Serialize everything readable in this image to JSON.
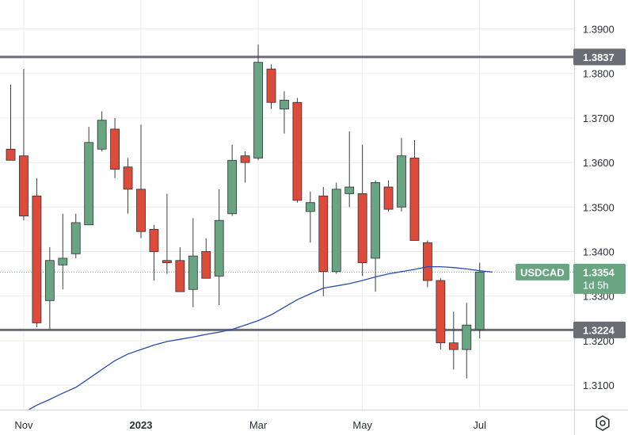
{
  "chart_data": {
    "type": "candlestick",
    "symbol": "USDCAD",
    "timeframe": "weekly",
    "ylim": [
      1.3045,
      1.3965
    ],
    "yticks": [
      "1.3100",
      "1.3200",
      "1.3300",
      "1.3400",
      "1.3500",
      "1.3600",
      "1.3700",
      "1.3800",
      "1.3900"
    ],
    "xticks": [
      {
        "label": "Nov",
        "index": 1,
        "year": false
      },
      {
        "label": "2023",
        "index": 10,
        "year": true
      },
      {
        "label": "Mar",
        "index": 19,
        "year": false
      },
      {
        "label": "May",
        "index": 27,
        "year": false
      },
      {
        "label": "Jul",
        "index": 36,
        "year": false
      }
    ],
    "candles": [
      {
        "o": 1.363,
        "h": 1.3775,
        "l": 1.3605,
        "c": 1.3605
      },
      {
        "o": 1.3615,
        "h": 1.381,
        "l": 1.347,
        "c": 1.348
      },
      {
        "o": 1.3525,
        "h": 1.3565,
        "l": 1.323,
        "c": 1.324
      },
      {
        "o": 1.329,
        "h": 1.341,
        "l": 1.3225,
        "c": 1.338
      },
      {
        "o": 1.337,
        "h": 1.3485,
        "l": 1.3315,
        "c": 1.3385
      },
      {
        "o": 1.3395,
        "h": 1.3485,
        "l": 1.3385,
        "c": 1.3465
      },
      {
        "o": 1.346,
        "h": 1.368,
        "l": 1.346,
        "c": 1.3645
      },
      {
        "o": 1.363,
        "h": 1.3715,
        "l": 1.3625,
        "c": 1.3695
      },
      {
        "o": 1.3675,
        "h": 1.37,
        "l": 1.3565,
        "c": 1.3585
      },
      {
        "o": 1.359,
        "h": 1.361,
        "l": 1.3485,
        "c": 1.354
      },
      {
        "o": 1.354,
        "h": 1.3685,
        "l": 1.343,
        "c": 1.3445
      },
      {
        "o": 1.345,
        "h": 1.346,
        "l": 1.3335,
        "c": 1.34
      },
      {
        "o": 1.338,
        "h": 1.353,
        "l": 1.335,
        "c": 1.3375
      },
      {
        "o": 1.338,
        "h": 1.341,
        "l": 1.331,
        "c": 1.331
      },
      {
        "o": 1.3315,
        "h": 1.3475,
        "l": 1.3275,
        "c": 1.339
      },
      {
        "o": 1.34,
        "h": 1.343,
        "l": 1.334,
        "c": 1.334
      },
      {
        "o": 1.3345,
        "h": 1.354,
        "l": 1.328,
        "c": 1.347
      },
      {
        "o": 1.3485,
        "h": 1.364,
        "l": 1.348,
        "c": 1.3605
      },
      {
        "o": 1.3615,
        "h": 1.3625,
        "l": 1.3555,
        "c": 1.36
      },
      {
        "o": 1.361,
        "h": 1.3865,
        "l": 1.3605,
        "c": 1.3825
      },
      {
        "o": 1.381,
        "h": 1.382,
        "l": 1.372,
        "c": 1.3735
      },
      {
        "o": 1.372,
        "h": 1.376,
        "l": 1.3665,
        "c": 1.374
      },
      {
        "o": 1.3735,
        "h": 1.3745,
        "l": 1.351,
        "c": 1.3515
      },
      {
        "o": 1.349,
        "h": 1.3535,
        "l": 1.342,
        "c": 1.351
      },
      {
        "o": 1.3525,
        "h": 1.3545,
        "l": 1.33,
        "c": 1.3355
      },
      {
        "o": 1.3355,
        "h": 1.3555,
        "l": 1.335,
        "c": 1.354
      },
      {
        "o": 1.353,
        "h": 1.367,
        "l": 1.35,
        "c": 1.3545
      },
      {
        "o": 1.353,
        "h": 1.364,
        "l": 1.3345,
        "c": 1.3375
      },
      {
        "o": 1.3385,
        "h": 1.356,
        "l": 1.331,
        "c": 1.3555
      },
      {
        "o": 1.3545,
        "h": 1.356,
        "l": 1.349,
        "c": 1.3495
      },
      {
        "o": 1.35,
        "h": 1.3655,
        "l": 1.349,
        "c": 1.3615
      },
      {
        "o": 1.361,
        "h": 1.365,
        "l": 1.3425,
        "c": 1.3425
      },
      {
        "o": 1.342,
        "h": 1.3425,
        "l": 1.332,
        "c": 1.3335
      },
      {
        "o": 1.3335,
        "h": 1.334,
        "l": 1.318,
        "c": 1.3195
      },
      {
        "o": 1.3195,
        "h": 1.3265,
        "l": 1.3135,
        "c": 1.318
      },
      {
        "o": 1.318,
        "h": 1.3285,
        "l": 1.3115,
        "c": 1.3235
      },
      {
        "o": 1.3225,
        "h": 1.3375,
        "l": 1.3205,
        "c": 1.3354
      }
    ],
    "moving_average": {
      "name": "MA",
      "start_index": 2,
      "values": [
        1.3055,
        1.3068,
        1.3082,
        1.3095,
        1.3115,
        1.3135,
        1.3155,
        1.317,
        1.318,
        1.319,
        1.3198,
        1.3203,
        1.3208,
        1.3214,
        1.3219,
        1.3225,
        1.3235,
        1.3245,
        1.3258,
        1.3275,
        1.3292,
        1.3305,
        1.3318,
        1.3323,
        1.3328,
        1.3335,
        1.3343,
        1.335,
        1.3355,
        1.336,
        1.3366,
        1.3366,
        1.3364,
        1.3361,
        1.3357,
        1.3354
      ]
    },
    "levels": [
      {
        "name": "resistance",
        "value": 1.3837,
        "label": "1.3837"
      },
      {
        "name": "support",
        "value": 1.3224,
        "label": "1.3224"
      }
    ],
    "last_price": {
      "value": 1.3354,
      "label": "1.3354",
      "symbol_label": "USDCAD",
      "countdown": "1d 5h"
    },
    "colors": {
      "up": "#6aa581",
      "down": "#dd4b3b",
      "ma": "#2a4bb0",
      "level": "#6b6d75",
      "badge": "#6aa581",
      "grid": "#e9ebef"
    }
  }
}
